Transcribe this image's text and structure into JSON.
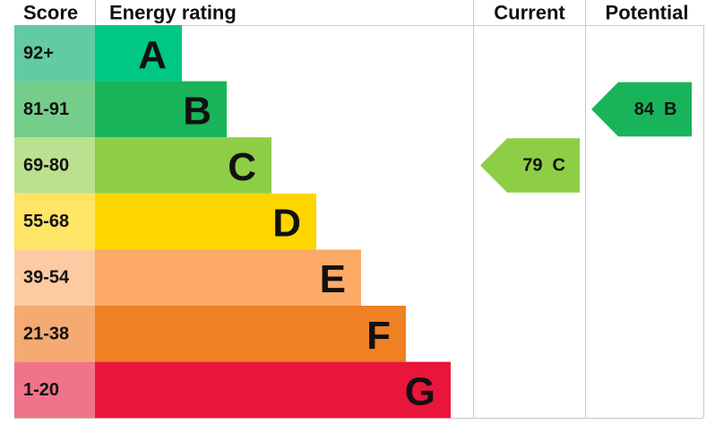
{
  "headers": {
    "score": "Score",
    "rating": "Energy rating",
    "current": "Current",
    "potential": "Potential"
  },
  "bands": [
    {
      "score": "92+",
      "letter": "A",
      "color": "#00c781",
      "score_color": "#62cba2"
    },
    {
      "score": "81-91",
      "letter": "B",
      "color": "#19b459",
      "score_color": "#75cd8c"
    },
    {
      "score": "69-80",
      "letter": "C",
      "color": "#8dce46",
      "score_color": "#bbe08f"
    },
    {
      "score": "55-68",
      "letter": "D",
      "color": "#ffd500",
      "score_color": "#ffe566"
    },
    {
      "score": "39-54",
      "letter": "E",
      "color": "#fcaa65",
      "score_color": "#fdcba2"
    },
    {
      "score": "21-38",
      "letter": "F",
      "color": "#ef8023",
      "score_color": "#f4aa72"
    },
    {
      "score": "1-20",
      "letter": "G",
      "color": "#e9153b",
      "score_color": "#f07389"
    }
  ],
  "current": {
    "value": 79,
    "letter": "C"
  },
  "potential": {
    "value": 84,
    "letter": "B"
  }
}
